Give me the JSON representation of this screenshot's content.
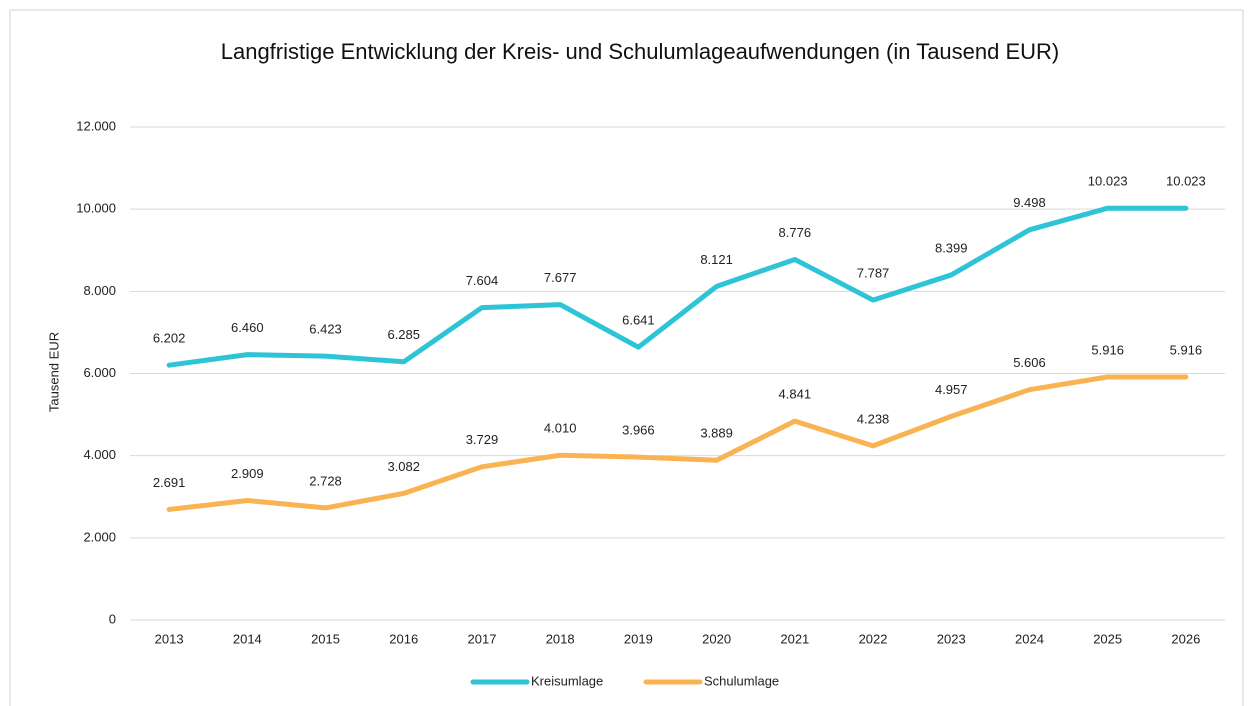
{
  "chart_data": {
    "type": "line",
    "title": "Langfristige Entwicklung der Kreis- und Schulumlageaufwendungen (in Tausend EUR)",
    "y_label": "Tausend EUR",
    "categories": [
      "2013",
      "2014",
      "2015",
      "2016",
      "2017",
      "2018",
      "2019",
      "2020",
      "2021",
      "2022",
      "2023",
      "2024",
      "2025",
      "2026"
    ],
    "series": [
      {
        "name": "Kreisumlage",
        "color": "#2ec4d6",
        "values": [
          6202,
          6460,
          6423,
          6285,
          7604,
          7677,
          6641,
          8121,
          8776,
          7787,
          8399,
          9498,
          10023,
          10023
        ],
        "value_labels": [
          "6.202",
          "6.460",
          "6.423",
          "6.285",
          "7.604",
          "7.677",
          "6.641",
          "8.121",
          "8.776",
          "7.787",
          "8.399",
          "9.498",
          "10.023",
          "10.023"
        ]
      },
      {
        "name": "Schulumlage",
        "color": "#f9b352",
        "values": [
          2691,
          2909,
          2728,
          3082,
          3729,
          4010,
          3966,
          3889,
          4841,
          4238,
          4957,
          5606,
          5916,
          5916
        ],
        "value_labels": [
          "2.691",
          "2.909",
          "2.728",
          "3.082",
          "3.729",
          "4.010",
          "3.966",
          "3.889",
          "4.841",
          "4.238",
          "4.957",
          "5.606",
          "5.916",
          "5.916"
        ]
      }
    ],
    "ylim": [
      0,
      12000
    ],
    "yticks": [
      0,
      {
        "value": 2000,
        "label": "2.000"
      },
      {
        "value": 4000,
        "label": "4.000"
      },
      {
        "value": 6000,
        "label": "6.000"
      },
      {
        "value": 8000,
        "label": "8.000"
      },
      {
        "value": 10000,
        "label": "10.000"
      },
      {
        "value": 12000,
        "label": "12.000"
      }
    ],
    "grid": true,
    "legend": "bottom"
  }
}
